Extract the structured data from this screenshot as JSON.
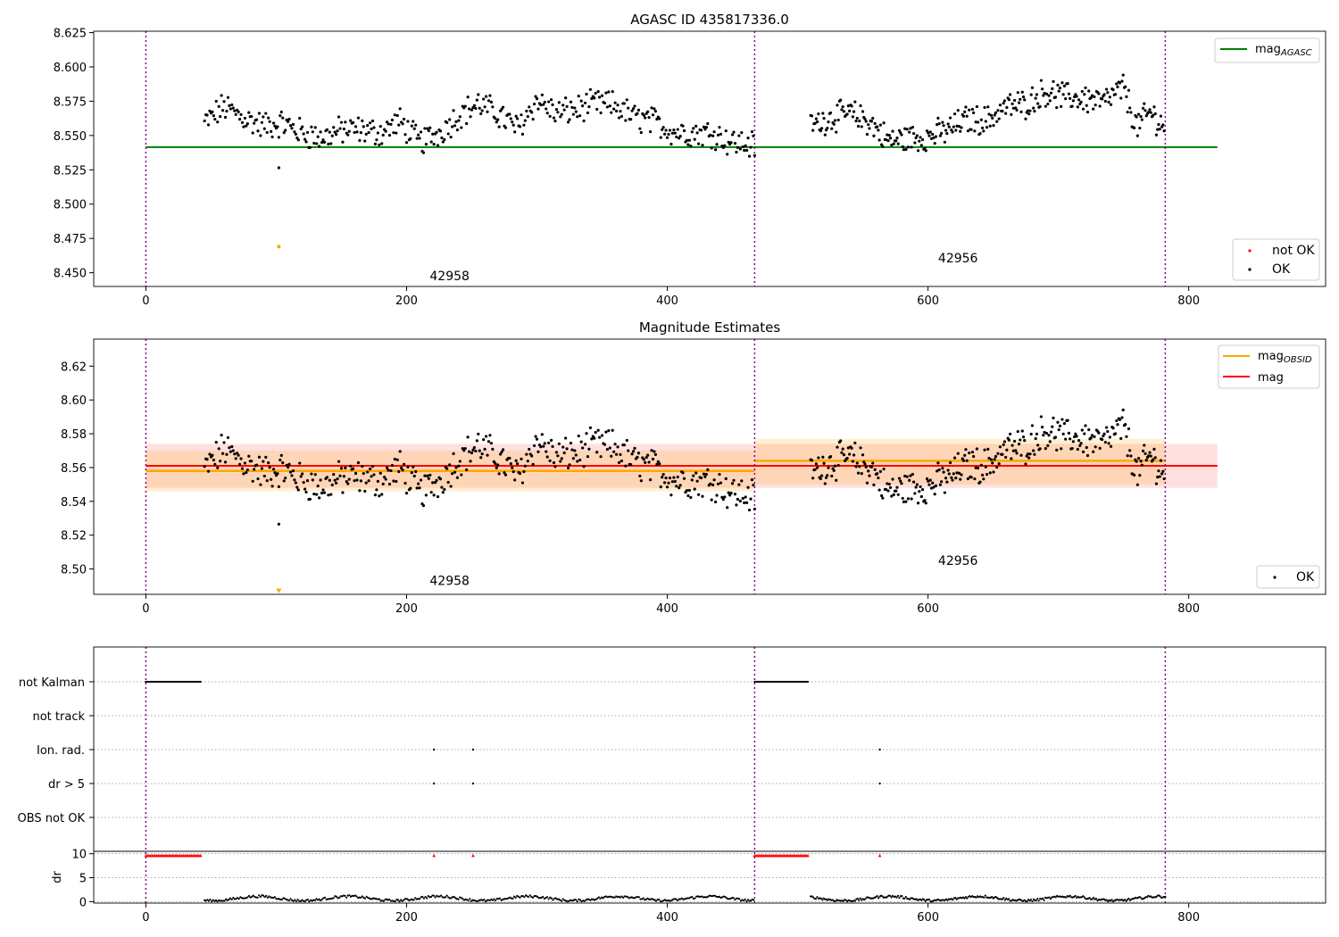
{
  "chart_data": [
    {
      "type": "scatter",
      "title": "AGASC ID 435817336.0",
      "xlim": [
        -40,
        905
      ],
      "ylim": [
        8.44,
        8.626
      ],
      "xticks": [
        "0",
        "200",
        "400",
        "600",
        "800"
      ],
      "yticks": [
        "8.450",
        "8.475",
        "8.500",
        "8.525",
        "8.550",
        "8.575",
        "8.600",
        "8.625"
      ],
      "mag_agasc": 8.5415,
      "obsid_boundaries": [
        0,
        467,
        782
      ],
      "obsid_labels": [
        {
          "text": "42958",
          "x": 233,
          "y": 8.4445
        },
        {
          "text": "42956",
          "x": 623,
          "y": 8.4575
        }
      ],
      "not_ok_points": [
        {
          "x": 102,
          "y": 8.469
        }
      ],
      "legend_upper": [
        {
          "label": "mag",
          "sub": "AGASC",
          "color": "#008000"
        }
      ],
      "legend_lower": [
        {
          "label": "not OK",
          "color": "#ff0000"
        },
        {
          "label": "OK",
          "color": "#000000"
        }
      ]
    },
    {
      "type": "scatter",
      "title": "Magnitude Estimates",
      "xlim": [
        -40,
        905
      ],
      "ylim": [
        8.485,
        8.636
      ],
      "xticks": [
        "0",
        "200",
        "400",
        "600",
        "800"
      ],
      "yticks": [
        "8.50",
        "8.52",
        "8.54",
        "8.56",
        "8.58",
        "8.60",
        "8.62"
      ],
      "mag": 8.561,
      "mag_band": [
        8.548,
        8.574
      ],
      "obsid_segments": [
        {
          "x0": 0,
          "x1": 467,
          "mag": 8.558,
          "band": [
            8.546,
            8.57
          ]
        },
        {
          "x0": 467,
          "x1": 782,
          "mag": 8.564,
          "band": [
            8.55,
            8.577
          ]
        }
      ],
      "obsid_boundaries": [
        0,
        467,
        782
      ],
      "obsid_labels": [
        {
          "text": "42958",
          "x": 233,
          "y": 8.4905
        },
        {
          "text": "42956",
          "x": 623,
          "y": 8.5025
        }
      ],
      "not_ok_points": [
        {
          "x": 102,
          "y": 8.4868
        }
      ],
      "legend_upper": [
        {
          "label": "mag",
          "sub": "OBSID",
          "color": "#ffa500"
        },
        {
          "label": "mag",
          "sub": "",
          "color": "#ff0000"
        }
      ],
      "legend_lower": [
        {
          "label": "OK",
          "color": "#000000"
        }
      ]
    },
    {
      "type": "scatter",
      "title": "",
      "xlim": [
        -40,
        905
      ],
      "xticks": [
        "0",
        "200",
        "400",
        "600",
        "800"
      ],
      "flag_labels": [
        "not Kalman",
        "not track",
        "Ion. rad.",
        "dr > 5",
        "OBS not OK"
      ],
      "dr_ylabel": "dr",
      "dr_yticks": [
        "0",
        "5",
        "10"
      ],
      "dr_ylim": [
        -0.3,
        10.5
      ],
      "obsid_boundaries": [
        0,
        467,
        782
      ],
      "not_kalman_ranges": [
        [
          0,
          43
        ],
        [
          467,
          508
        ]
      ],
      "ion_rad_x": [
        221,
        251,
        563
      ],
      "dr_gt5_x": [
        221,
        251,
        563
      ]
    }
  ]
}
